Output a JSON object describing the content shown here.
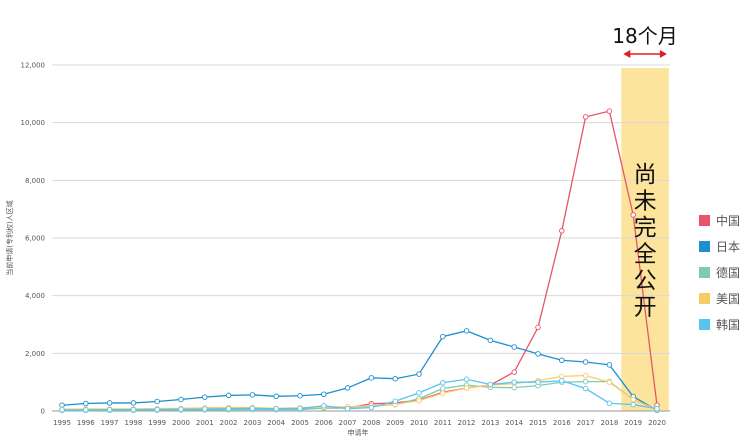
{
  "chart_data": {
    "type": "line",
    "xlabel": "申请年",
    "ylabel": "当前申请(专利权)人区域",
    "ylim": [
      0,
      12000
    ],
    "yticks": [
      "0",
      "2,000",
      "4,000",
      "6,000",
      "8,000",
      "10,000",
      "12,000"
    ],
    "ytick_values": [
      0,
      2000,
      4000,
      6000,
      8000,
      10000,
      12000
    ],
    "grid": true,
    "legend_position": "right",
    "categories": [
      "1995",
      "1996",
      "1997",
      "1998",
      "1999",
      "2000",
      "2001",
      "2002",
      "2003",
      "2004",
      "2005",
      "2006",
      "2007",
      "2008",
      "2009",
      "2010",
      "2011",
      "2012",
      "2013",
      "2014",
      "2015",
      "2016",
      "2017",
      "2018",
      "2019",
      "2020"
    ],
    "series": [
      {
        "name": "中国",
        "color": "#e8546a",
        "values": [
          30,
          30,
          35,
          40,
          45,
          50,
          60,
          70,
          80,
          70,
          80,
          100,
          110,
          250,
          280,
          380,
          650,
          800,
          900,
          1350,
          2900,
          6250,
          10200,
          10400,
          6800,
          200
        ]
      },
      {
        "name": "日本",
        "color": "#1f8fcf",
        "values": [
          200,
          260,
          280,
          280,
          330,
          400,
          480,
          540,
          560,
          510,
          530,
          580,
          800,
          1150,
          1120,
          1280,
          2580,
          2780,
          2450,
          2220,
          1980,
          1760,
          1700,
          1600,
          500,
          30
        ]
      },
      {
        "name": "德国",
        "color": "#7ecab7",
        "values": [
          20,
          20,
          25,
          25,
          30,
          35,
          40,
          45,
          50,
          45,
          50,
          100,
          130,
          170,
          220,
          430,
          780,
          900,
          820,
          810,
          880,
          1000,
          1020,
          1020,
          400,
          50
        ]
      },
      {
        "name": "美国",
        "color": "#f7cc66",
        "values": [
          60,
          70,
          70,
          75,
          80,
          90,
          110,
          120,
          120,
          90,
          110,
          130,
          150,
          180,
          230,
          360,
          620,
          800,
          900,
          950,
          1050,
          1200,
          1230,
          1000,
          400,
          50
        ]
      },
      {
        "name": "韩国",
        "color": "#5ac4f0",
        "values": [
          40,
          40,
          45,
          45,
          50,
          60,
          70,
          80,
          90,
          80,
          90,
          180,
          80,
          120,
          340,
          630,
          980,
          1100,
          920,
          1000,
          1000,
          1050,
          780,
          270,
          220,
          80
        ]
      }
    ]
  },
  "annotation": {
    "period_label": "18个月",
    "note_chars": [
      "尚",
      "未",
      "完",
      "全",
      "公",
      "开"
    ],
    "highlight_color": "#fde49c",
    "arrow_color": "#e02020",
    "highlight_from": 2018.5,
    "highlight_to": 2020.5
  }
}
